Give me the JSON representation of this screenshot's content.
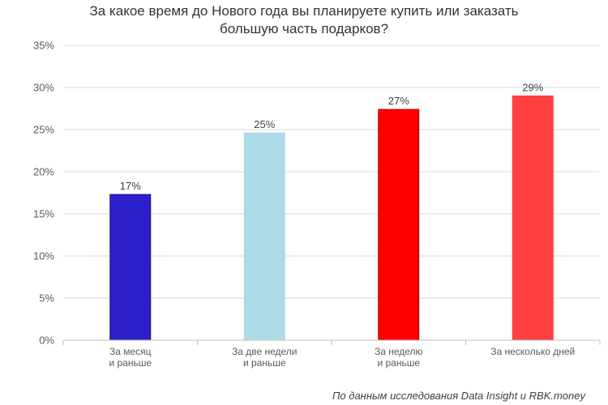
{
  "chart_data": {
    "type": "bar",
    "title_lines": [
      "За какое время до Нового года вы планируете купить или заказать",
      "большую часть подарков?"
    ],
    "categories": [
      [
        "За месяц",
        "и раньше"
      ],
      [
        "За две недели",
        "и раньше"
      ],
      [
        "За неделю",
        "и раньше"
      ],
      [
        "За несколько дней"
      ]
    ],
    "values": [
      17.3,
      24.6,
      27.4,
      29.0
    ],
    "value_labels": [
      "17%",
      "25%",
      "27%",
      "29%"
    ],
    "bar_colors": [
      "#2b1fcc",
      "#aedbe8",
      "#ff0000",
      "#ff4040"
    ],
    "bar_borders": [
      "#1a1080",
      "#aedbe8",
      "#b00000",
      "#ff4040"
    ],
    "ylim": [
      0,
      35
    ],
    "yticks": [
      0,
      5,
      10,
      15,
      20,
      25,
      30,
      35
    ],
    "ytick_labels": [
      "0%",
      "5%",
      "10%",
      "15%",
      "20%",
      "25%",
      "30%",
      "35%"
    ],
    "grid": true,
    "xlabel": "",
    "ylabel": "",
    "legend": "none"
  },
  "source": "По данным исследования Data Insight и RBK.money"
}
